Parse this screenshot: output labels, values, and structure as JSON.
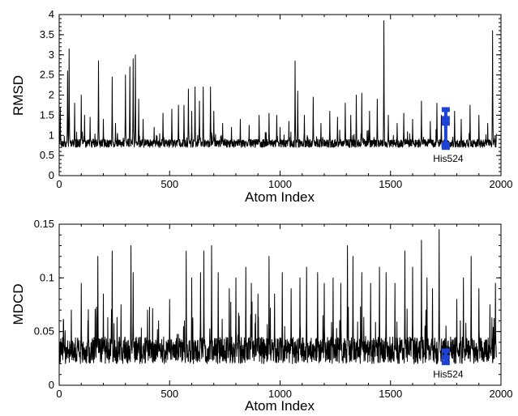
{
  "chart_data": [
    {
      "type": "line",
      "xlabel": "Atom Index",
      "ylabel": "RMSD",
      "xlim": [
        0,
        2000
      ],
      "ylim": [
        0,
        4
      ],
      "xticks": [
        "0",
        "500",
        "1000",
        "1500",
        "2000"
      ],
      "yticks": [
        "0",
        "0.5",
        "1",
        "1.5",
        "2",
        "2.5",
        "3",
        "3.5",
        "4"
      ],
      "baseline": [
        0.7,
        0.9
      ],
      "peaks": [
        {
          "x": 5,
          "y": 1.7
        },
        {
          "x": 38,
          "y": 2.6
        },
        {
          "x": 45,
          "y": 3.15
        },
        {
          "x": 70,
          "y": 1.8
        },
        {
          "x": 100,
          "y": 2.0
        },
        {
          "x": 115,
          "y": 1.5
        },
        {
          "x": 140,
          "y": 1.45
        },
        {
          "x": 178,
          "y": 2.85
        },
        {
          "x": 200,
          "y": 1.4
        },
        {
          "x": 240,
          "y": 2.45
        },
        {
          "x": 255,
          "y": 1.3
        },
        {
          "x": 300,
          "y": 2.5
        },
        {
          "x": 320,
          "y": 2.7
        },
        {
          "x": 335,
          "y": 2.9
        },
        {
          "x": 345,
          "y": 3.0
        },
        {
          "x": 360,
          "y": 1.9
        },
        {
          "x": 380,
          "y": 1.4
        },
        {
          "x": 430,
          "y": 1.2
        },
        {
          "x": 470,
          "y": 1.55
        },
        {
          "x": 510,
          "y": 1.65
        },
        {
          "x": 540,
          "y": 1.75
        },
        {
          "x": 565,
          "y": 1.75
        },
        {
          "x": 585,
          "y": 2.15
        },
        {
          "x": 600,
          "y": 1.6
        },
        {
          "x": 615,
          "y": 2.2
        },
        {
          "x": 635,
          "y": 1.85
        },
        {
          "x": 652,
          "y": 2.2
        },
        {
          "x": 685,
          "y": 2.2
        },
        {
          "x": 700,
          "y": 1.6
        },
        {
          "x": 740,
          "y": 1.3
        },
        {
          "x": 780,
          "y": 1.2
        },
        {
          "x": 820,
          "y": 1.4
        },
        {
          "x": 860,
          "y": 1.25
        },
        {
          "x": 905,
          "y": 1.5
        },
        {
          "x": 950,
          "y": 1.55
        },
        {
          "x": 985,
          "y": 1.5
        },
        {
          "x": 1000,
          "y": 1.2
        },
        {
          "x": 1040,
          "y": 1.35
        },
        {
          "x": 1068,
          "y": 2.85
        },
        {
          "x": 1080,
          "y": 2.1
        },
        {
          "x": 1110,
          "y": 1.5
        },
        {
          "x": 1150,
          "y": 1.95
        },
        {
          "x": 1185,
          "y": 1.3
        },
        {
          "x": 1225,
          "y": 1.6
        },
        {
          "x": 1260,
          "y": 1.45
        },
        {
          "x": 1295,
          "y": 1.8
        },
        {
          "x": 1320,
          "y": 1.5
        },
        {
          "x": 1345,
          "y": 2.0
        },
        {
          "x": 1370,
          "y": 2.05
        },
        {
          "x": 1405,
          "y": 1.6
        },
        {
          "x": 1440,
          "y": 1.9
        },
        {
          "x": 1470,
          "y": 3.85
        },
        {
          "x": 1490,
          "y": 1.5
        },
        {
          "x": 1530,
          "y": 1.3
        },
        {
          "x": 1560,
          "y": 1.55
        },
        {
          "x": 1600,
          "y": 1.4
        },
        {
          "x": 1640,
          "y": 1.85
        },
        {
          "x": 1680,
          "y": 1.35
        },
        {
          "x": 1710,
          "y": 1.8
        },
        {
          "x": 1730,
          "y": 1.5
        },
        {
          "x": 1790,
          "y": 1.6
        },
        {
          "x": 1820,
          "y": 1.4
        },
        {
          "x": 1860,
          "y": 1.75
        },
        {
          "x": 1900,
          "y": 1.5
        },
        {
          "x": 1940,
          "y": 1.3
        },
        {
          "x": 1962,
          "y": 3.6
        },
        {
          "x": 1980,
          "y": 1.45
        }
      ],
      "highlight": {
        "label": "His524",
        "color": "#1d43d6",
        "x": 1750,
        "y_min": 0.68,
        "y_max": 1.65,
        "markers": [
          1.64,
          1.42,
          1.3,
          0.78,
          0.7
        ]
      }
    },
    {
      "type": "line",
      "xlabel": "Atom Index",
      "ylabel": "MDCD",
      "xlim": [
        0,
        2000
      ],
      "ylim": [
        0,
        0.15
      ],
      "xticks": [
        "0",
        "500",
        "1000",
        "1500",
        "2000"
      ],
      "yticks": [
        "0",
        "0.05",
        "0.1",
        "0.15"
      ],
      "baseline": [
        0.02,
        0.045
      ],
      "peaks": [
        {
          "x": 20,
          "y": 0.06
        },
        {
          "x": 55,
          "y": 0.07
        },
        {
          "x": 100,
          "y": 0.095
        },
        {
          "x": 130,
          "y": 0.06
        },
        {
          "x": 175,
          "y": 0.12
        },
        {
          "x": 200,
          "y": 0.085
        },
        {
          "x": 240,
          "y": 0.125
        },
        {
          "x": 280,
          "y": 0.075
        },
        {
          "x": 325,
          "y": 0.13
        },
        {
          "x": 335,
          "y": 0.105
        },
        {
          "x": 400,
          "y": 0.07
        },
        {
          "x": 450,
          "y": 0.06
        },
        {
          "x": 500,
          "y": 0.08
        },
        {
          "x": 575,
          "y": 0.125
        },
        {
          "x": 600,
          "y": 0.1
        },
        {
          "x": 640,
          "y": 0.105
        },
        {
          "x": 655,
          "y": 0.125
        },
        {
          "x": 690,
          "y": 0.13
        },
        {
          "x": 720,
          "y": 0.105
        },
        {
          "x": 770,
          "y": 0.09
        },
        {
          "x": 800,
          "y": 0.1
        },
        {
          "x": 845,
          "y": 0.11
        },
        {
          "x": 870,
          "y": 0.095
        },
        {
          "x": 900,
          "y": 0.085
        },
        {
          "x": 950,
          "y": 0.12
        },
        {
          "x": 975,
          "y": 0.085
        },
        {
          "x": 1010,
          "y": 0.105
        },
        {
          "x": 1050,
          "y": 0.09
        },
        {
          "x": 1090,
          "y": 0.1
        },
        {
          "x": 1120,
          "y": 0.11
        },
        {
          "x": 1170,
          "y": 0.105
        },
        {
          "x": 1200,
          "y": 0.095
        },
        {
          "x": 1240,
          "y": 0.1
        },
        {
          "x": 1275,
          "y": 0.095
        },
        {
          "x": 1305,
          "y": 0.13
        },
        {
          "x": 1330,
          "y": 0.12
        },
        {
          "x": 1370,
          "y": 0.105
        },
        {
          "x": 1410,
          "y": 0.095
        },
        {
          "x": 1450,
          "y": 0.11
        },
        {
          "x": 1480,
          "y": 0.105
        },
        {
          "x": 1520,
          "y": 0.095
        },
        {
          "x": 1565,
          "y": 0.125
        },
        {
          "x": 1600,
          "y": 0.11
        },
        {
          "x": 1640,
          "y": 0.135
        },
        {
          "x": 1665,
          "y": 0.1
        },
        {
          "x": 1690,
          "y": 0.09
        },
        {
          "x": 1720,
          "y": 0.145
        },
        {
          "x": 1800,
          "y": 0.08
        },
        {
          "x": 1830,
          "y": 0.1
        },
        {
          "x": 1865,
          "y": 0.12
        },
        {
          "x": 1900,
          "y": 0.09
        },
        {
          "x": 1950,
          "y": 0.075
        },
        {
          "x": 1975,
          "y": 0.095
        }
      ],
      "highlight": {
        "label": "His524",
        "color": "#1d43d6",
        "x": 1750,
        "y_min": 0.02,
        "y_max": 0.034,
        "markers": [
          0.032,
          0.026,
          0.021
        ]
      }
    }
  ]
}
